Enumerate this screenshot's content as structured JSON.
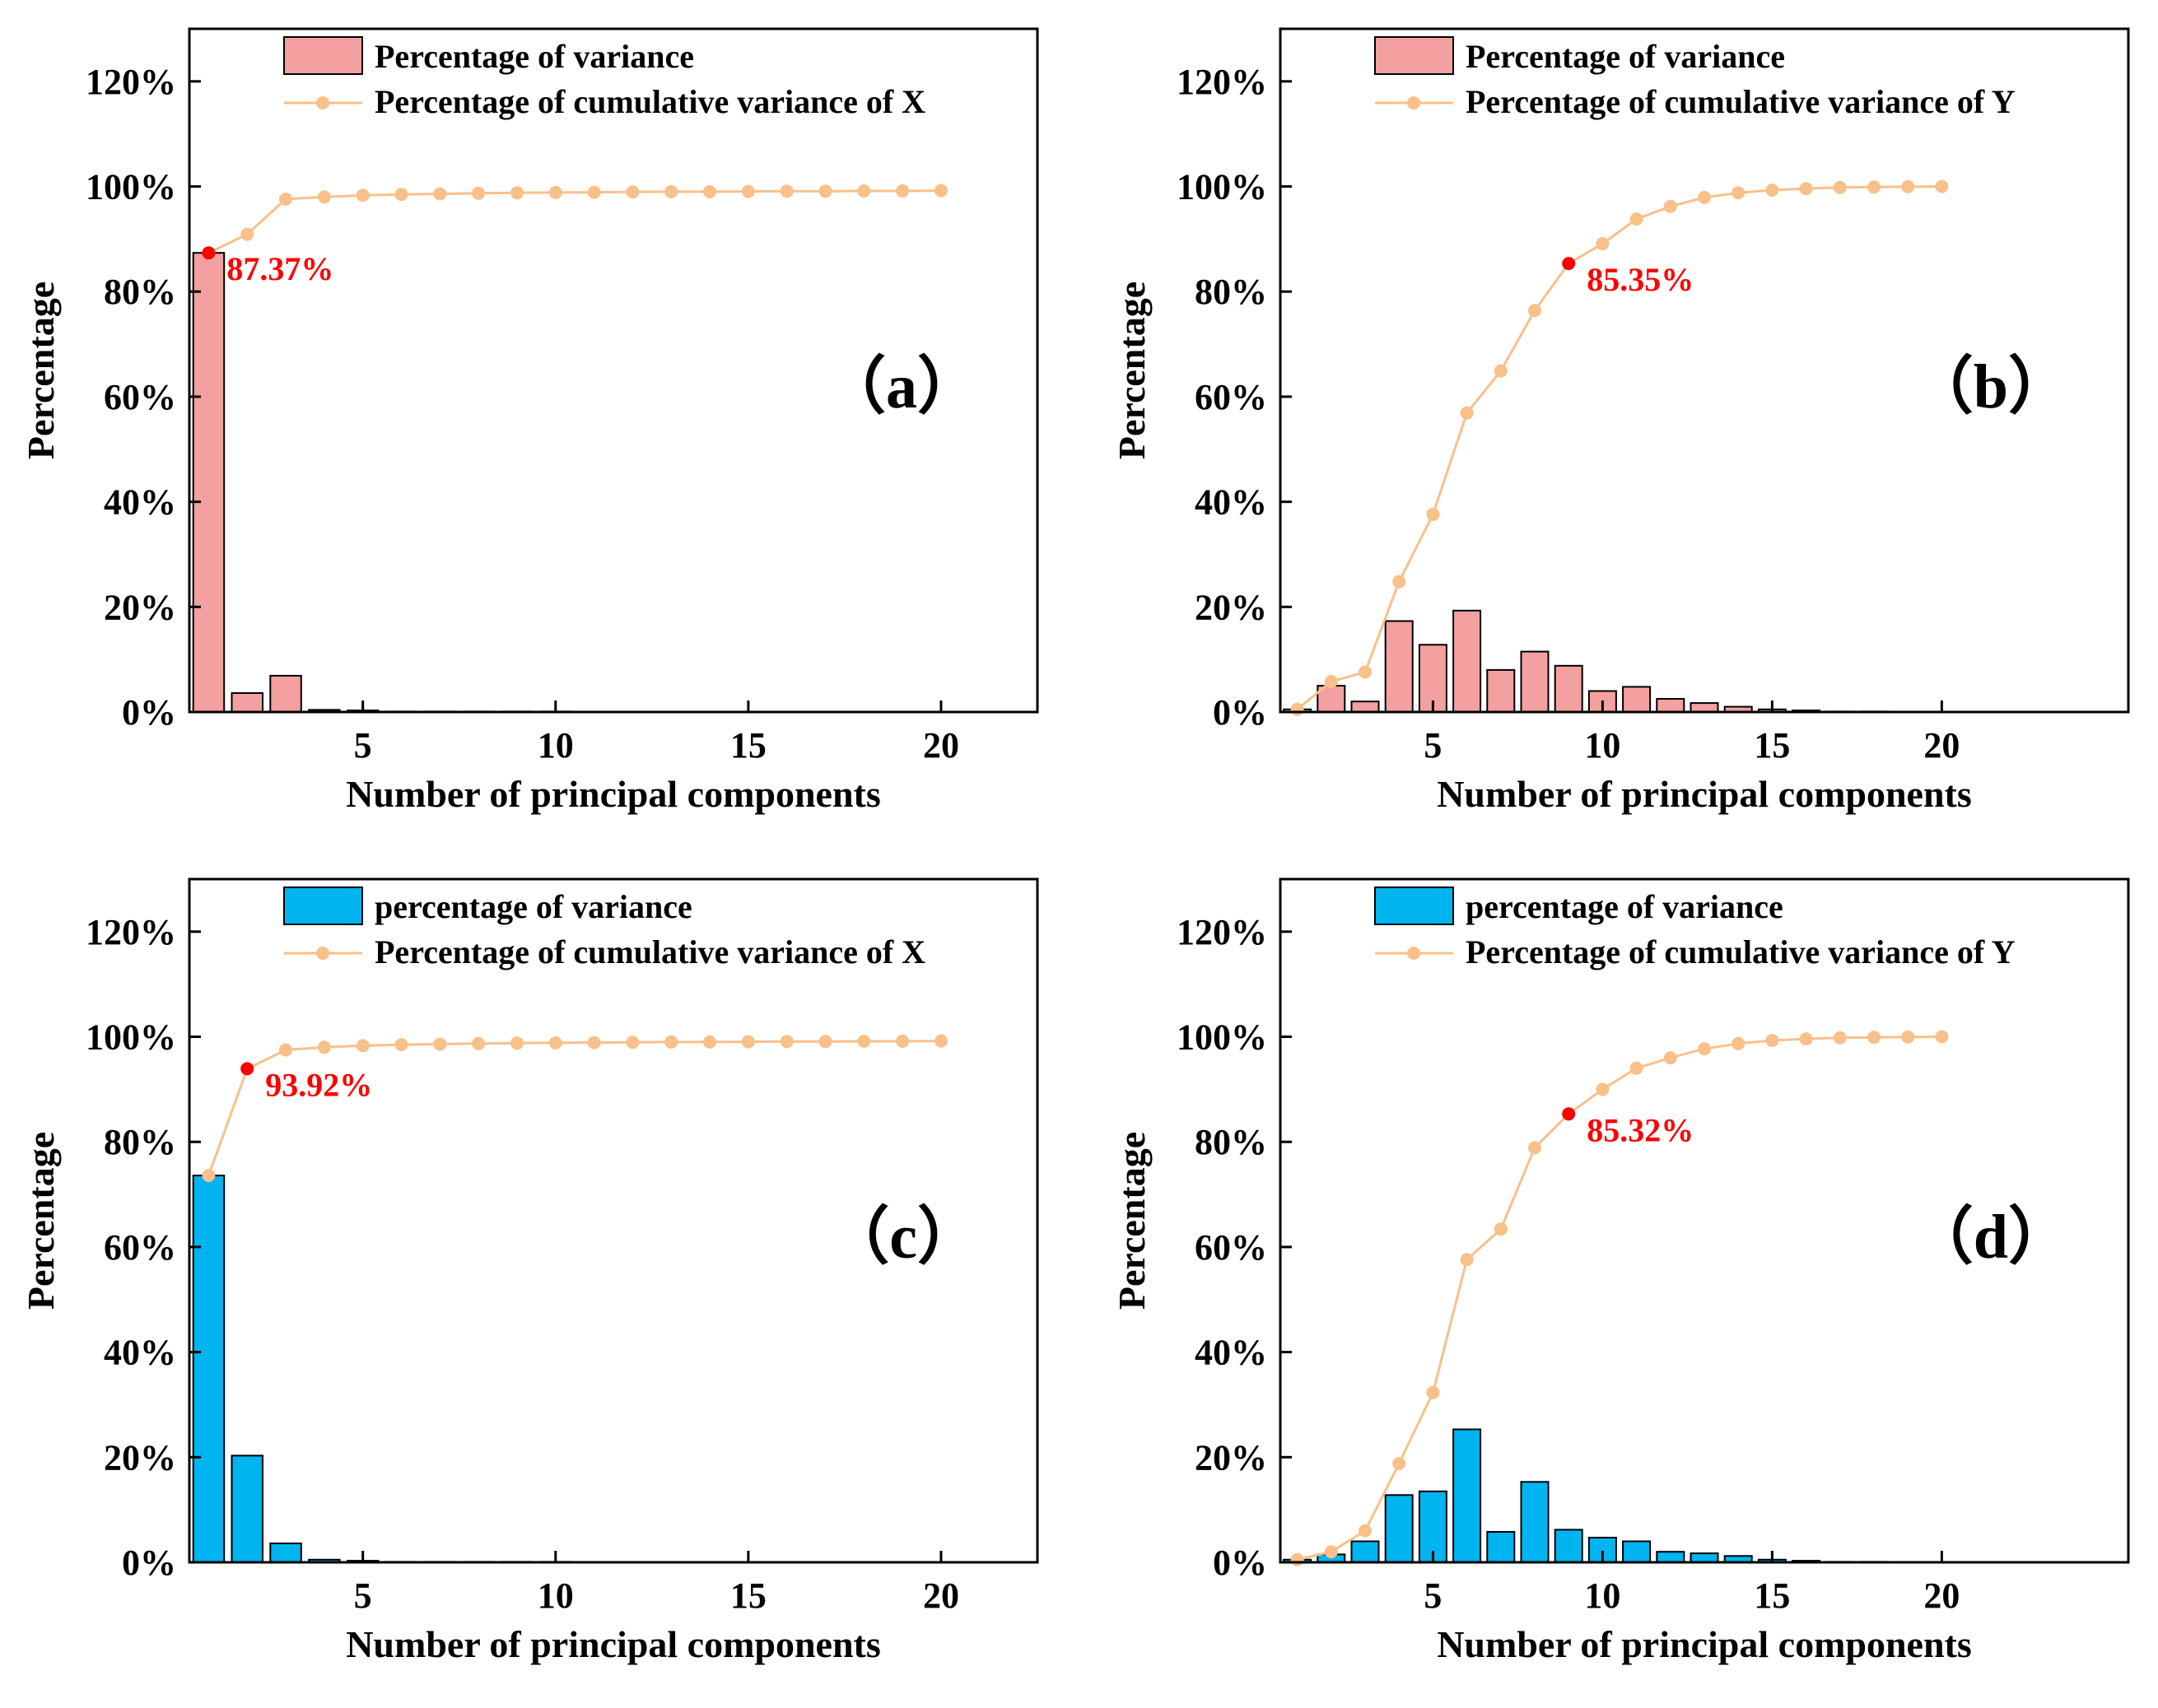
{
  "chart_data": [
    {
      "panel": "a",
      "type": "bar+line",
      "panel_label": "（a）",
      "xlabel": "Number of principal components",
      "ylabel": "Percentage",
      "xlim": [
        0.5,
        22.5
      ],
      "ylim": [
        0,
        130
      ],
      "xticks": [
        5,
        10,
        15,
        20
      ],
      "yticks": [
        0,
        20,
        40,
        60,
        80,
        100,
        120
      ],
      "ytick_labels": [
        "0%",
        "20%",
        "40%",
        "60%",
        "80%",
        "100%",
        "120%"
      ],
      "legend": {
        "bar_label": "Percentage of variance",
        "line_label": "Percentage of cumulative variance of X",
        "placement": "top-left",
        "swatch_style": "outlined"
      },
      "bar_color": "#f4a0a0",
      "line_color": "#f9c08a",
      "highlight_color": "#ff0000",
      "x": [
        1,
        2,
        3,
        4,
        5,
        6,
        7,
        8,
        9,
        10,
        11,
        12,
        13,
        14,
        15,
        16,
        17,
        18,
        19,
        20
      ],
      "bar_values": [
        87.37,
        3.6,
        6.9,
        0.4,
        0.3,
        0.1,
        0.1,
        0.1,
        0.1,
        0.1,
        0.05,
        0.05,
        0.05,
        0.05,
        0.05,
        0.05,
        0.05,
        0.05,
        0.05,
        0.05
      ],
      "line_values": [
        87.37,
        90.9,
        97.6,
        98.0,
        98.3,
        98.5,
        98.6,
        98.7,
        98.8,
        98.85,
        98.9,
        98.95,
        99.0,
        99.0,
        99.05,
        99.1,
        99.1,
        99.15,
        99.15,
        99.2
      ],
      "highlight_index": 0,
      "annotation": "87.37%"
    },
    {
      "panel": "b",
      "type": "bar+line",
      "panel_label": "（b）",
      "xlabel": "Number of principal components",
      "ylabel": "Percentage",
      "xlim": [
        0.5,
        25.5
      ],
      "ylim": [
        0,
        130
      ],
      "xticks": [
        5,
        10,
        15,
        20
      ],
      "yticks": [
        0,
        20,
        40,
        60,
        80,
        100,
        120
      ],
      "ytick_labels": [
        "0%",
        "20%",
        "40%",
        "60%",
        "80%",
        "100%",
        "120%"
      ],
      "legend": {
        "bar_label": "Percentage of variance",
        "line_label": "Percentage of cumulative variance of Y",
        "placement": "top-left",
        "swatch_style": "outlined"
      },
      "bar_color": "#f4a0a0",
      "line_color": "#f9c08a",
      "highlight_color": "#ff0000",
      "x": [
        1,
        2,
        3,
        4,
        5,
        6,
        7,
        8,
        9,
        10,
        11,
        12,
        13,
        14,
        15,
        16,
        17,
        18,
        19,
        20
      ],
      "bar_values": [
        0.5,
        5.0,
        2.0,
        17.3,
        12.8,
        19.3,
        8.0,
        11.5,
        8.8,
        4.0,
        4.8,
        2.5,
        1.7,
        1.0,
        0.5,
        0.3,
        0.1,
        0.1,
        0.05,
        0.05
      ],
      "line_values": [
        0.5,
        5.8,
        7.6,
        24.8,
        37.6,
        56.9,
        64.9,
        76.4,
        85.35,
        89.1,
        93.8,
        96.2,
        97.9,
        98.8,
        99.3,
        99.6,
        99.8,
        99.9,
        99.95,
        100.0
      ],
      "highlight_index": 8,
      "annotation": "85.35%"
    },
    {
      "panel": "c",
      "type": "bar+line",
      "panel_label": "（c）",
      "xlabel": "Number of principal components",
      "ylabel": "Percentage",
      "xlim": [
        0.5,
        22.5
      ],
      "ylim": [
        0,
        130
      ],
      "xticks": [
        5,
        10,
        15,
        20
      ],
      "yticks": [
        0,
        20,
        40,
        60,
        80,
        100,
        120
      ],
      "ytick_labels": [
        "0%",
        "20%",
        "40%",
        "60%",
        "80%",
        "100%",
        "120%"
      ],
      "legend": {
        "bar_label": "percentage of variance",
        "line_label": "Percentage of cumulative variance of X",
        "placement": "top-left",
        "swatch_style": "filled"
      },
      "bar_color": "#00b4ef",
      "line_color": "#f9c08a",
      "highlight_color": "#ff0000",
      "x": [
        1,
        2,
        3,
        4,
        5,
        6,
        7,
        8,
        9,
        10,
        11,
        12,
        13,
        14,
        15,
        16,
        17,
        18,
        19,
        20
      ],
      "bar_values": [
        73.6,
        20.3,
        3.6,
        0.5,
        0.3,
        0.1,
        0.1,
        0.1,
        0.1,
        0.1,
        0.05,
        0.05,
        0.05,
        0.05,
        0.05,
        0.05,
        0.05,
        0.05,
        0.05,
        0.05
      ],
      "line_values": [
        73.6,
        93.92,
        97.5,
        98.0,
        98.3,
        98.5,
        98.6,
        98.7,
        98.8,
        98.85,
        98.9,
        98.95,
        99.0,
        99.0,
        99.05,
        99.1,
        99.1,
        99.15,
        99.15,
        99.2
      ],
      "highlight_index": 1,
      "annotation": "93.92%"
    },
    {
      "panel": "d",
      "type": "bar+line",
      "panel_label": "（d）",
      "xlabel": "Number of principal components",
      "ylabel": "Percentage",
      "xlim": [
        0.5,
        25.5
      ],
      "ylim": [
        0,
        130
      ],
      "xticks": [
        5,
        10,
        15,
        20
      ],
      "yticks": [
        0,
        20,
        40,
        60,
        80,
        100,
        120
      ],
      "ytick_labels": [
        "0%",
        "20%",
        "40%",
        "60%",
        "80%",
        "100%",
        "120%"
      ],
      "legend": {
        "bar_label": "percentage of variance",
        "line_label": "Percentage of cumulative variance of Y",
        "placement": "top-left",
        "swatch_style": "filled"
      },
      "bar_color": "#00b4ef",
      "line_color": "#f9c08a",
      "highlight_color": "#ff0000",
      "x": [
        1,
        2,
        3,
        4,
        5,
        6,
        7,
        8,
        9,
        10,
        11,
        12,
        13,
        14,
        15,
        16,
        17,
        18,
        19,
        20
      ],
      "bar_values": [
        0.5,
        1.5,
        4.0,
        12.8,
        13.5,
        25.3,
        5.8,
        15.3,
        6.2,
        4.7,
        4.0,
        2.0,
        1.7,
        1.2,
        0.5,
        0.3,
        0.1,
        0.1,
        0.05,
        0.05
      ],
      "line_values": [
        0.5,
        2.0,
        6.0,
        18.8,
        32.3,
        57.6,
        63.4,
        78.9,
        85.32,
        90.0,
        94.0,
        96.0,
        97.7,
        98.7,
        99.3,
        99.6,
        99.8,
        99.9,
        99.95,
        100.0
      ],
      "highlight_index": 8,
      "annotation": "85.32%"
    }
  ]
}
